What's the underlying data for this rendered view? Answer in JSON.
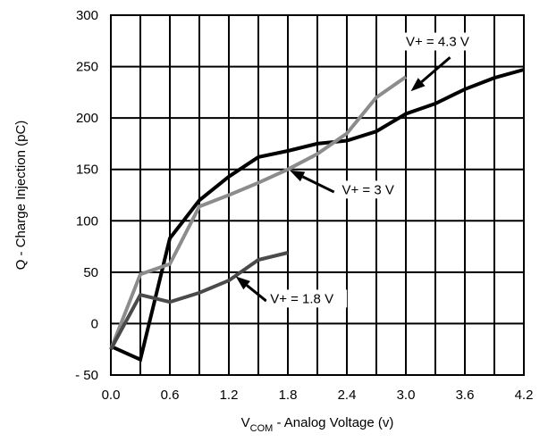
{
  "chart_data": {
    "type": "line",
    "title": "",
    "xlabel_main": "V",
    "xlabel_sub": "COM",
    "xlabel_rest": " - Analog Voltage (v)",
    "ylabel": "Q - Charge Injection (pC)",
    "xlim": [
      0,
      4.2
    ],
    "ylim": [
      -50,
      300
    ],
    "x_ticks": [
      0.0,
      0.6,
      1.2,
      1.8,
      2.4,
      3.0,
      3.6,
      4.2
    ],
    "x_tick_labels": [
      "0.0",
      "0.6",
      "1.2",
      "1.8",
      "2.4",
      "3.0",
      "3.6",
      "4.2"
    ],
    "y_ticks": [
      -50,
      0,
      50,
      100,
      150,
      200,
      250,
      300
    ],
    "y_tick_labels": [
      "- 50",
      "0",
      "50",
      "100",
      "150",
      "200",
      "250",
      "300"
    ],
    "grid": true,
    "legend": "none",
    "series": [
      {
        "name": "V+ = 4.3 V",
        "color": "#000000",
        "x": [
          0.0,
          0.3,
          0.6,
          0.9,
          1.2,
          1.5,
          1.8,
          2.1,
          2.4,
          2.7,
          3.0,
          3.3,
          3.6,
          3.9,
          4.2
        ],
        "y": [
          -22,
          -35,
          83,
          120,
          143,
          162,
          168,
          175,
          178,
          187,
          204,
          214,
          228,
          239,
          247
        ]
      },
      {
        "name": "V+ = 3 V",
        "color": "#8c8c8c",
        "x": [
          0.0,
          0.3,
          0.6,
          0.9,
          1.2,
          1.5,
          1.8,
          2.1,
          2.4,
          2.7,
          3.0
        ],
        "y": [
          -25,
          48,
          58,
          114,
          125,
          137,
          150,
          165,
          185,
          220,
          240
        ]
      },
      {
        "name": "V+ = 1.8 V",
        "color": "#4a4a4a",
        "x": [
          0.0,
          0.3,
          0.6,
          0.9,
          1.2,
          1.5,
          1.8
        ],
        "y": [
          -25,
          28,
          21,
          30,
          42,
          62,
          69
        ]
      }
    ],
    "annotations": [
      {
        "text": "V+ = 4.3 V",
        "label_x": 3.0,
        "label_y": 270,
        "arrow_from": [
          3.45,
          259
        ],
        "arrow_to": [
          3.05,
          226
        ]
      },
      {
        "text": "V+ = 3 V",
        "label_x": 2.35,
        "label_y": 126,
        "arrow_from": [
          2.27,
          128
        ],
        "arrow_to": [
          1.82,
          149
        ]
      },
      {
        "text": "V+ = 1.8 V",
        "label_x": 1.62,
        "label_y": 20,
        "arrow_from": [
          1.58,
          22
        ],
        "arrow_to": [
          1.27,
          46
        ]
      }
    ]
  }
}
